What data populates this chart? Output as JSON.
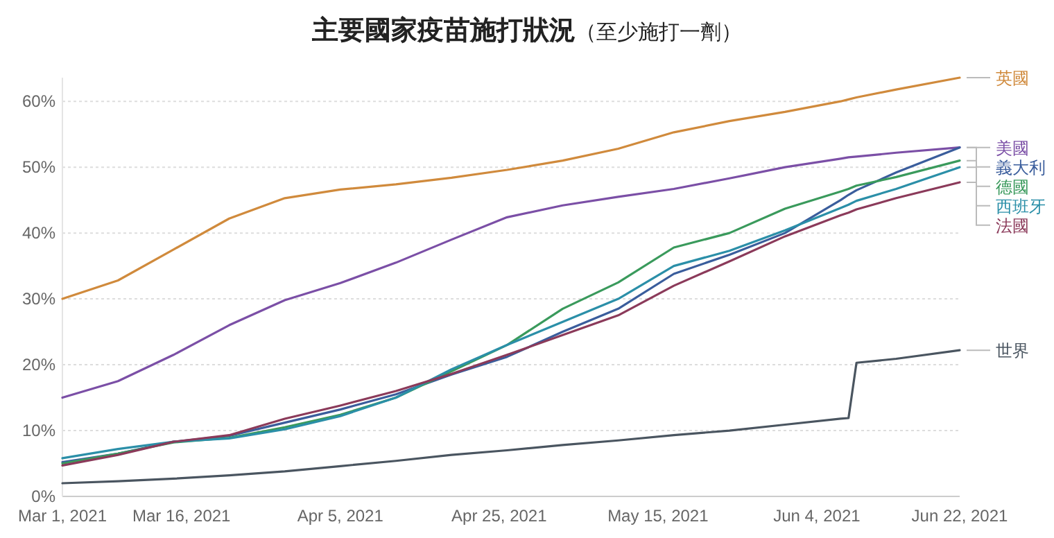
{
  "chart_data": {
    "type": "line",
    "title": "主要國家疫苗施打狀況",
    "subtitle": "（至少施打一劑）",
    "x": [
      "2021-03-01",
      "2021-03-08",
      "2021-03-15",
      "2021-03-22",
      "2021-03-29",
      "2021-04-05",
      "2021-04-12",
      "2021-04-19",
      "2021-04-26",
      "2021-05-03",
      "2021-05-10",
      "2021-05-17",
      "2021-05-24",
      "2021-05-31",
      "2021-06-07",
      "2021-06-08",
      "2021-06-09",
      "2021-06-14",
      "2021-06-22"
    ],
    "series": [
      {
        "name": "英國",
        "color": "#d08a3c",
        "values": [
          30,
          32.8,
          37.5,
          42.2,
          45.3,
          46.6,
          47.4,
          48.4,
          49.6,
          51.0,
          52.8,
          55.3,
          57.0,
          58.4,
          60.0,
          60.3,
          60.6,
          61.8,
          63.6
        ]
      },
      {
        "name": "美國",
        "color": "#7b4fa6",
        "values": [
          15,
          17.5,
          21.5,
          26,
          29.8,
          32.4,
          35.5,
          39,
          42.4,
          44.2,
          45.5,
          46.7,
          48.3,
          50.0,
          51.3,
          51.5,
          51.6,
          52.2,
          53.0
        ]
      },
      {
        "name": "義大利",
        "color": "#3a5d9c",
        "values": [
          5.2,
          6.5,
          8.3,
          9.2,
          11.2,
          13.2,
          15.5,
          18.5,
          21.2,
          25,
          28.5,
          33.8,
          36.7,
          40,
          45,
          45.8,
          46.5,
          49.2,
          53.0
        ]
      },
      {
        "name": "德國",
        "color": "#3a9a5c",
        "values": [
          5.0,
          6.5,
          8.2,
          8.9,
          10.5,
          12.4,
          15,
          19,
          23,
          28.5,
          32.5,
          37.8,
          40,
          43.7,
          46.3,
          46.7,
          47.2,
          48.5,
          51.0
        ]
      },
      {
        "name": "西班牙",
        "color": "#2b8fa8",
        "values": [
          5.8,
          7.2,
          8.3,
          8.8,
          10.2,
          12.2,
          15,
          19.3,
          23,
          26.5,
          30,
          35,
          37.3,
          40.4,
          43.8,
          44.3,
          44.9,
          46.7,
          50.0
        ]
      },
      {
        "name": "法國",
        "color": "#8b3a5a",
        "values": [
          4.7,
          6.3,
          8.3,
          9.3,
          11.8,
          13.8,
          16,
          18.6,
          21.5,
          24.5,
          27.5,
          32,
          35.7,
          39.5,
          42.7,
          43.1,
          43.6,
          45.3,
          47.7
        ]
      },
      {
        "name": "世界",
        "color": "#4a5560",
        "values": [
          2.0,
          2.3,
          2.7,
          3.2,
          3.8,
          4.6,
          5.4,
          6.3,
          7.0,
          7.8,
          8.5,
          9.3,
          10.0,
          10.9,
          11.8,
          11.9,
          20.3,
          20.9,
          22.2
        ]
      }
    ],
    "xlim": [
      "2021-03-01",
      "2021-06-22"
    ],
    "xticks": [
      {
        "value": "2021-03-01",
        "label": "Mar 1, 2021"
      },
      {
        "value": "2021-03-16",
        "label": "Mar 16, 2021"
      },
      {
        "value": "2021-04-05",
        "label": "Apr 5, 2021"
      },
      {
        "value": "2021-04-25",
        "label": "Apr 25, 2021"
      },
      {
        "value": "2021-05-15",
        "label": "May 15, 2021"
      },
      {
        "value": "2021-06-04",
        "label": "Jun 4, 2021"
      },
      {
        "value": "2021-06-22",
        "label": "Jun 22, 2021"
      }
    ],
    "ylim": [
      0,
      63.6
    ],
    "yticks": [
      {
        "value": 0,
        "label": "0%"
      },
      {
        "value": 10,
        "label": "10%"
      },
      {
        "value": 20,
        "label": "20%"
      },
      {
        "value": 30,
        "label": "30%"
      },
      {
        "value": 40,
        "label": "40%"
      },
      {
        "value": 50,
        "label": "50%"
      },
      {
        "value": 60,
        "label": "60%"
      }
    ],
    "grid": "y",
    "line_style": "solid"
  }
}
